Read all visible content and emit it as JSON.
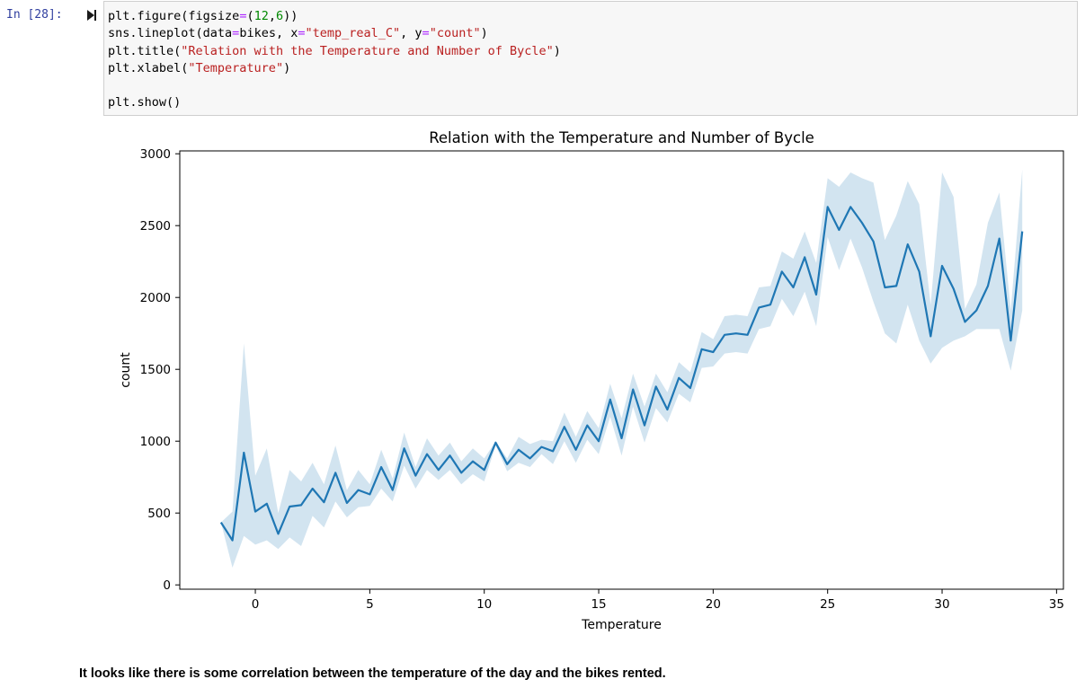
{
  "cell": {
    "prompt": "In [28]:",
    "code_lines": [
      [
        {
          "t": "plt.figure(figsize"
        },
        {
          "t": "=",
          "c": "op"
        },
        {
          "t": "("
        },
        {
          "t": "12",
          "c": "num"
        },
        {
          "t": ","
        },
        {
          "t": "6",
          "c": "num"
        },
        {
          "t": "))"
        }
      ],
      [
        {
          "t": "sns.lineplot(data"
        },
        {
          "t": "=",
          "c": "op"
        },
        {
          "t": "bikes, x"
        },
        {
          "t": "=",
          "c": "op"
        },
        {
          "t": "\"temp_real_C\"",
          "c": "str"
        },
        {
          "t": ", y"
        },
        {
          "t": "=",
          "c": "op"
        },
        {
          "t": "\"count\"",
          "c": "str"
        },
        {
          "t": ")"
        }
      ],
      [
        {
          "t": "plt.title("
        },
        {
          "t": "\"Relation with the Temperature and Number of Bycle\"",
          "c": "str"
        },
        {
          "t": ")"
        }
      ],
      [
        {
          "t": "plt.xlabel("
        },
        {
          "t": "\"Temperature\"",
          "c": "str"
        },
        {
          "t": ")"
        }
      ],
      [],
      [
        {
          "t": "plt.show()"
        }
      ]
    ]
  },
  "chart_data": {
    "type": "line",
    "title": "Relation with the Temperature and Number of Bycle",
    "xlabel": "Temperature",
    "ylabel": "count",
    "xlim": [
      -3.3,
      35.3
    ],
    "ylim": [
      -30,
      3020
    ],
    "xticks": [
      0,
      5,
      10,
      15,
      20,
      25,
      30,
      35
    ],
    "yticks": [
      0,
      500,
      1000,
      1500,
      2000,
      2500,
      3000
    ],
    "line_color": "#1f77b4",
    "band_color": "#1f77b4",
    "grid": false,
    "x": [
      -1.5,
      -1.0,
      -0.5,
      0.0,
      0.5,
      1.0,
      1.5,
      2.0,
      2.5,
      3.0,
      3.5,
      4.0,
      4.5,
      5.0,
      5.5,
      6.0,
      6.5,
      7.0,
      7.5,
      8.0,
      8.5,
      9.0,
      9.5,
      10.0,
      10.5,
      11.0,
      11.5,
      12.0,
      12.5,
      13.0,
      13.5,
      14.0,
      14.5,
      15.0,
      15.5,
      16.0,
      16.5,
      17.0,
      17.5,
      18.0,
      18.5,
      19.0,
      19.5,
      20.0,
      20.5,
      21.0,
      21.5,
      22.0,
      22.5,
      23.0,
      23.5,
      24.0,
      24.5,
      25.0,
      25.5,
      26.0,
      26.5,
      27.0,
      27.5,
      28.0,
      28.5,
      29.0,
      29.5,
      30.0,
      30.5,
      31.0,
      31.5,
      32.0,
      32.5,
      33.0,
      33.5
    ],
    "y": [
      435,
      310,
      920,
      510,
      565,
      355,
      545,
      555,
      670,
      575,
      780,
      570,
      660,
      630,
      820,
      660,
      950,
      760,
      910,
      800,
      900,
      780,
      860,
      800,
      990,
      840,
      940,
      880,
      960,
      930,
      1100,
      940,
      1110,
      1000,
      1290,
      1020,
      1360,
      1110,
      1380,
      1220,
      1440,
      1370,
      1640,
      1620,
      1740,
      1750,
      1740,
      1930,
      1950,
      2180,
      2070,
      2280,
      2020,
      2630,
      2470,
      2630,
      2520,
      2390,
      2070,
      2080,
      2370,
      2180,
      1730,
      2220,
      2060,
      1830,
      1910,
      2080,
      2410,
      1700,
      2460
    ],
    "upper": [
      435,
      510,
      1680,
      760,
      950,
      500,
      800,
      720,
      850,
      700,
      970,
      660,
      800,
      700,
      940,
      740,
      1060,
      820,
      1020,
      900,
      990,
      860,
      950,
      880,
      1000,
      880,
      1030,
      980,
      1010,
      1000,
      1200,
      1030,
      1210,
      1090,
      1400,
      1160,
      1470,
      1240,
      1470,
      1340,
      1550,
      1480,
      1760,
      1710,
      1870,
      1880,
      1870,
      2070,
      2080,
      2320,
      2270,
      2460,
      2240,
      2830,
      2770,
      2870,
      2830,
      2800,
      2400,
      2570,
      2810,
      2650,
      1950,
      2870,
      2700,
      1920,
      2090,
      2520,
      2730,
      1910,
      2890
    ],
    "lower": [
      435,
      120,
      340,
      280,
      310,
      250,
      330,
      270,
      480,
      400,
      580,
      470,
      540,
      550,
      670,
      580,
      830,
      670,
      800,
      730,
      800,
      700,
      770,
      720,
      970,
      790,
      850,
      820,
      910,
      840,
      1000,
      850,
      1010,
      910,
      1170,
      900,
      1240,
      990,
      1230,
      1130,
      1330,
      1270,
      1510,
      1520,
      1610,
      1620,
      1610,
      1780,
      1800,
      1990,
      1870,
      2040,
      1800,
      2420,
      2190,
      2410,
      2210,
      1970,
      1750,
      1680,
      1950,
      1700,
      1540,
      1650,
      1700,
      1730,
      1780,
      1780,
      1780,
      1490,
      1910
    ]
  },
  "note": "It looks like there is some correlation between the temperature of the day and the bikes rented."
}
